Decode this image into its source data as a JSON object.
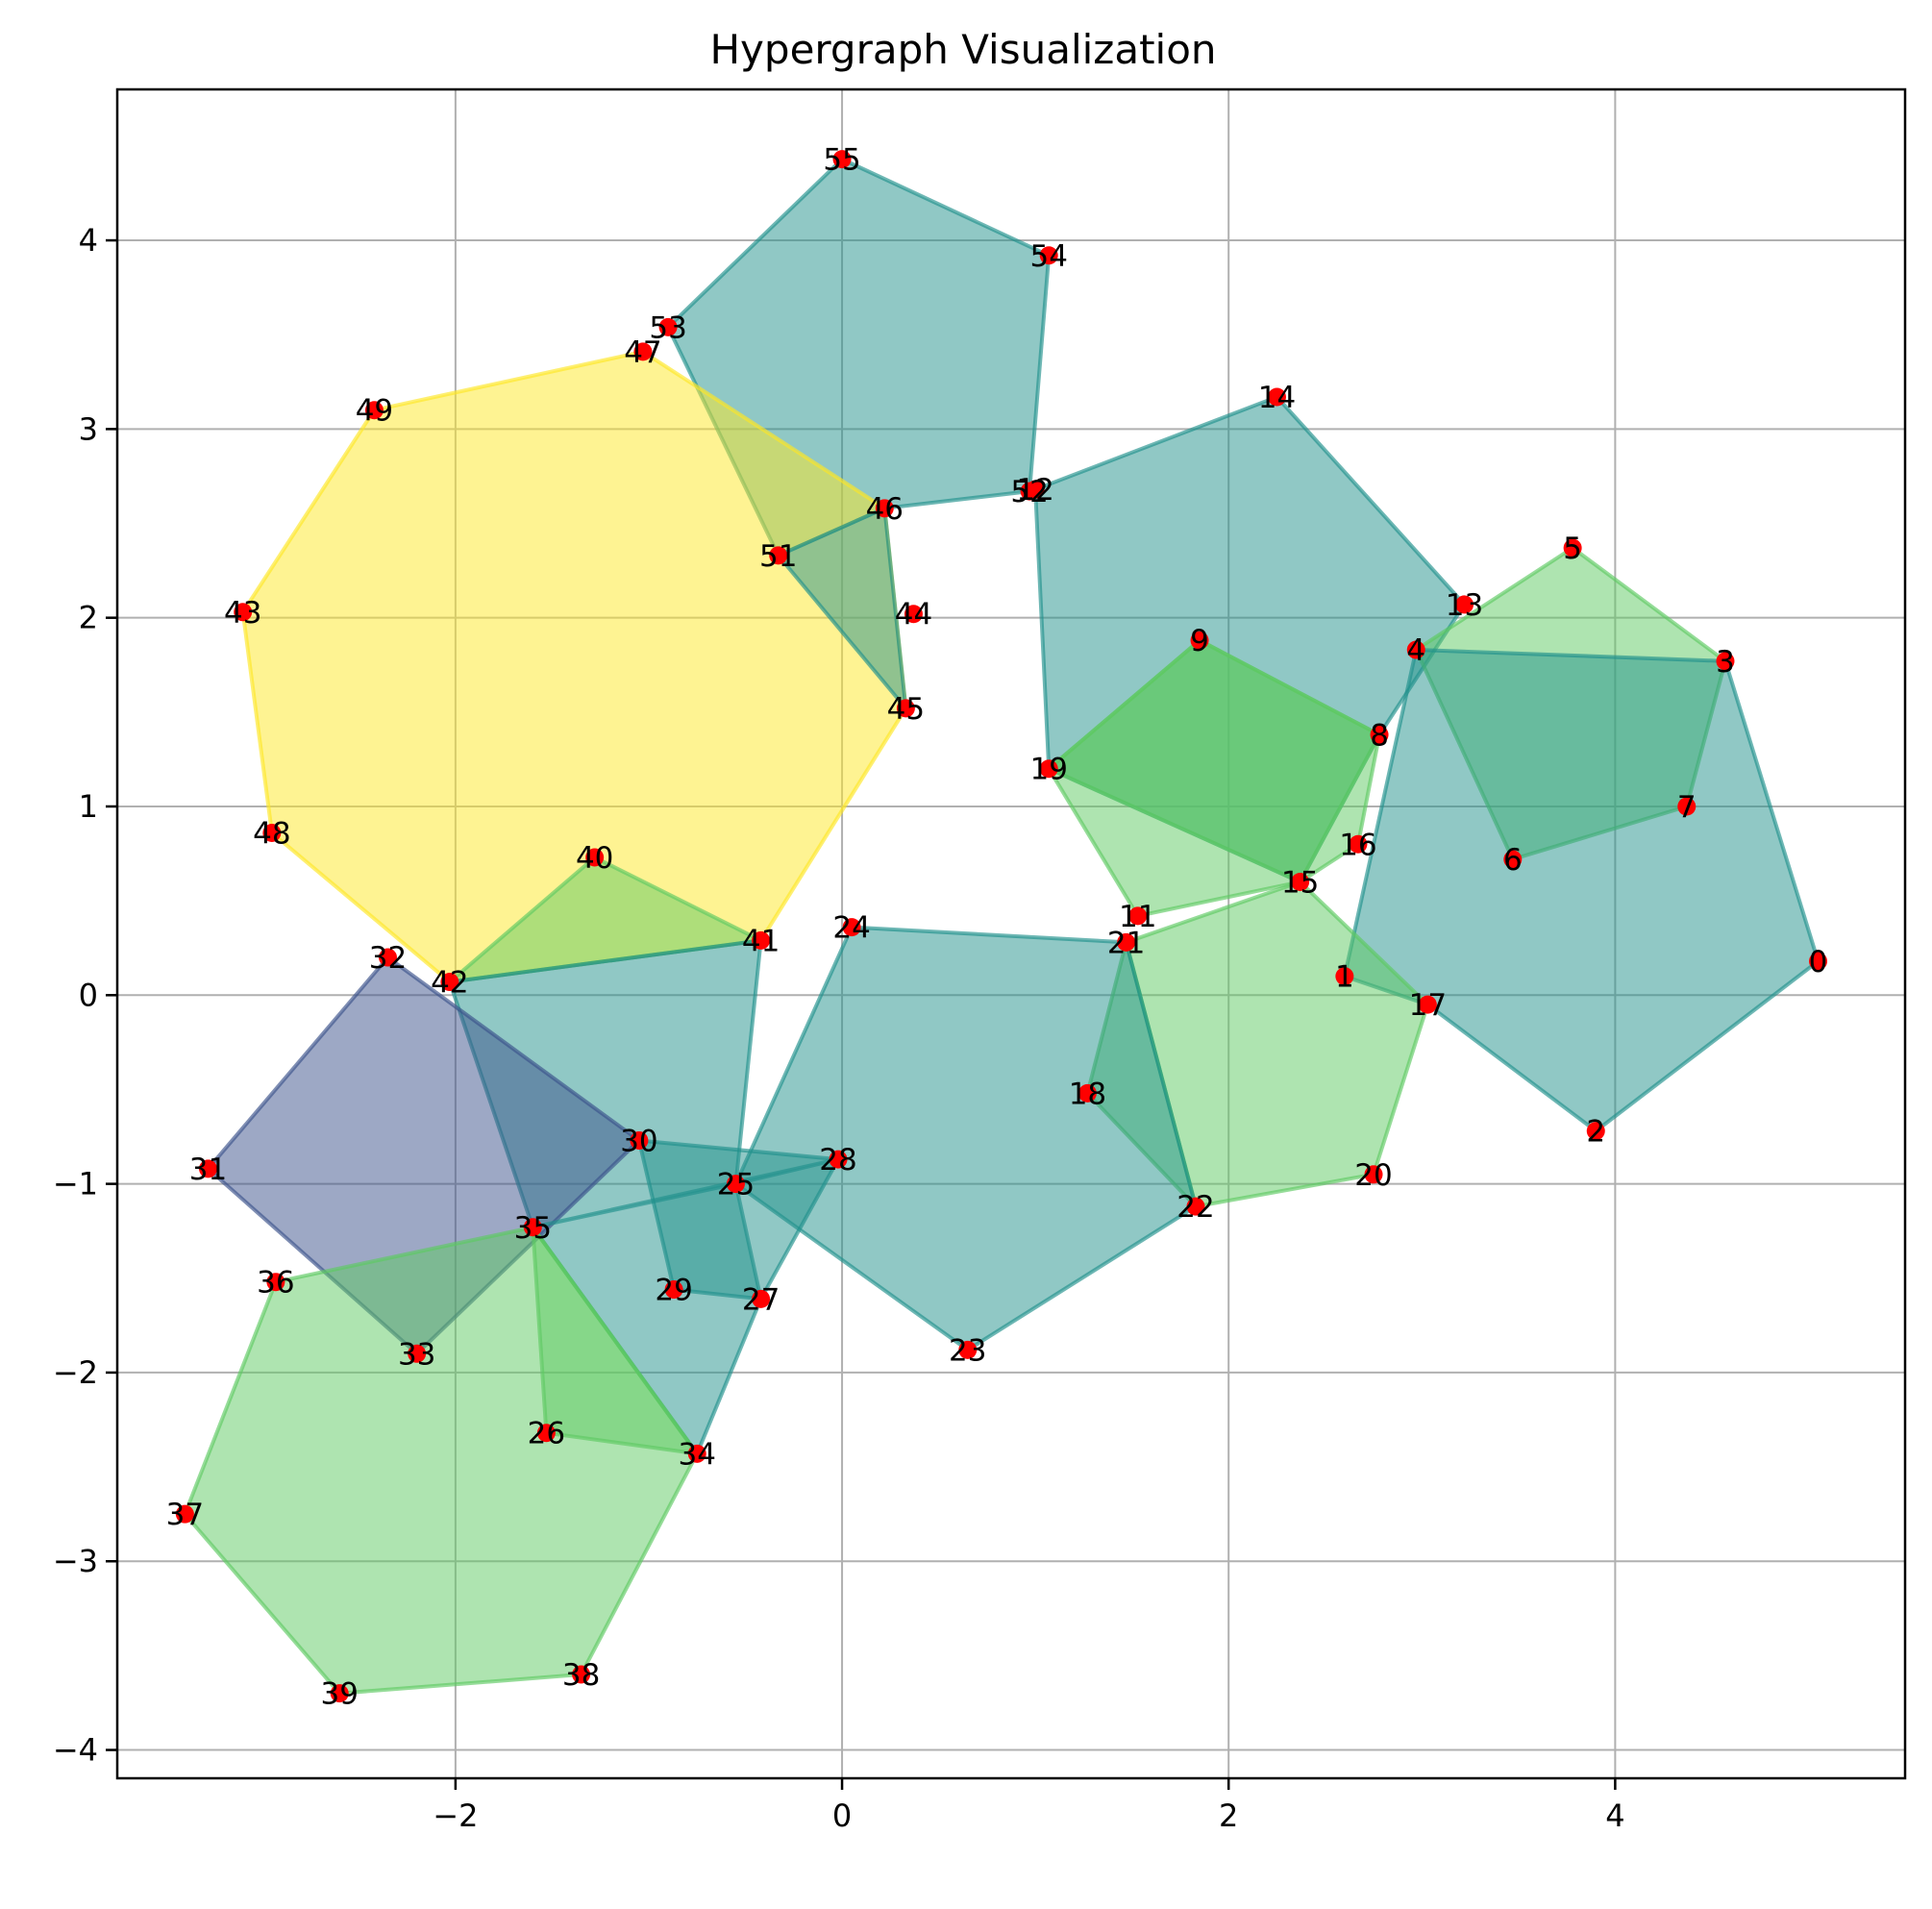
{
  "chart_data": {
    "type": "hypergraph",
    "title": "Hypergraph Visualization",
    "xlim": [
      -3.75,
      5.5
    ],
    "ylim": [
      -4.15,
      4.8
    ],
    "x_ticks": [
      -2,
      0,
      2,
      4
    ],
    "y_ticks": [
      -4,
      -3,
      -2,
      -1,
      0,
      1,
      2,
      3,
      4
    ],
    "x_tick_labels": [
      "−2",
      "0",
      "2",
      "4"
    ],
    "y_tick_labels": [
      "−4",
      "−3",
      "−2",
      "−1",
      "0",
      "1",
      "2",
      "3",
      "4"
    ],
    "grid": true,
    "node_color": "#ff0000",
    "colors": {
      "teal": "#21918c",
      "green": "#5ec962",
      "yellow": "#fde725",
      "purple": "#3b528b"
    },
    "nodes": [
      {
        "id": "0",
        "x": 5.05,
        "y": 0.18
      },
      {
        "id": "1",
        "x": 2.6,
        "y": 0.1
      },
      {
        "id": "2",
        "x": 3.9,
        "y": -0.72
      },
      {
        "id": "3",
        "x": 4.57,
        "y": 1.77
      },
      {
        "id": "4",
        "x": 2.97,
        "y": 1.83
      },
      {
        "id": "5",
        "x": 3.78,
        "y": 2.37
      },
      {
        "id": "6",
        "x": 3.47,
        "y": 0.72
      },
      {
        "id": "7",
        "x": 4.37,
        "y": 1.0
      },
      {
        "id": "8",
        "x": 2.78,
        "y": 1.38
      },
      {
        "id": "9",
        "x": 1.85,
        "y": 1.88
      },
      {
        "id": "11",
        "x": 1.53,
        "y": 0.42
      },
      {
        "id": "12",
        "x": 1.0,
        "y": 2.68
      },
      {
        "id": "13",
        "x": 3.22,
        "y": 2.07
      },
      {
        "id": "14",
        "x": 2.25,
        "y": 3.17
      },
      {
        "id": "15",
        "x": 2.37,
        "y": 0.6
      },
      {
        "id": "16",
        "x": 2.67,
        "y": 0.8
      },
      {
        "id": "17",
        "x": 3.03,
        "y": -0.05
      },
      {
        "id": "18",
        "x": 1.27,
        "y": -0.52
      },
      {
        "id": "19",
        "x": 1.07,
        "y": 1.2
      },
      {
        "id": "20",
        "x": 2.75,
        "y": -0.95
      },
      {
        "id": "21",
        "x": 1.47,
        "y": 0.28
      },
      {
        "id": "22",
        "x": 1.83,
        "y": -1.12
      },
      {
        "id": "23",
        "x": 0.65,
        "y": -1.88
      },
      {
        "id": "24",
        "x": 0.05,
        "y": 0.36
      },
      {
        "id": "25",
        "x": -0.55,
        "y": -1.0
      },
      {
        "id": "26",
        "x": -1.53,
        "y": -2.32
      },
      {
        "id": "27",
        "x": -0.42,
        "y": -1.61
      },
      {
        "id": "28",
        "x": -0.02,
        "y": -0.87
      },
      {
        "id": "29",
        "x": -0.87,
        "y": -1.56
      },
      {
        "id": "30",
        "x": -1.05,
        "y": -0.77
      },
      {
        "id": "31",
        "x": -3.28,
        "y": -0.92
      },
      {
        "id": "32",
        "x": -2.35,
        "y": 0.2
      },
      {
        "id": "33",
        "x": -2.2,
        "y": -1.9
      },
      {
        "id": "34",
        "x": -0.75,
        "y": -2.43
      },
      {
        "id": "35",
        "x": -1.6,
        "y": -1.23
      },
      {
        "id": "36",
        "x": -2.93,
        "y": -1.52
      },
      {
        "id": "37",
        "x": -3.4,
        "y": -2.75
      },
      {
        "id": "38",
        "x": -1.35,
        "y": -3.6
      },
      {
        "id": "39",
        "x": -2.6,
        "y": -3.7
      },
      {
        "id": "40",
        "x": -1.28,
        "y": 0.73
      },
      {
        "id": "41",
        "x": -0.42,
        "y": 0.29
      },
      {
        "id": "42",
        "x": -2.03,
        "y": 0.07
      },
      {
        "id": "43",
        "x": -3.1,
        "y": 2.03
      },
      {
        "id": "44",
        "x": 0.37,
        "y": 2.02
      },
      {
        "id": "45",
        "x": 0.33,
        "y": 1.52
      },
      {
        "id": "46",
        "x": 0.22,
        "y": 2.58
      },
      {
        "id": "47",
        "x": -1.03,
        "y": 3.41
      },
      {
        "id": "48",
        "x": -2.95,
        "y": 0.86
      },
      {
        "id": "49",
        "x": -2.42,
        "y": 3.1
      },
      {
        "id": "51",
        "x": -0.33,
        "y": 2.33
      },
      {
        "id": "52",
        "x": 0.97,
        "y": 2.67
      },
      {
        "id": "53",
        "x": -0.9,
        "y": 3.54
      },
      {
        "id": "54",
        "x": 1.07,
        "y": 3.92
      },
      {
        "id": "55",
        "x": 0.0,
        "y": 4.43
      }
    ],
    "hyperedges": [
      {
        "color": "teal",
        "nodes": [
          "53",
          "55",
          "54",
          "52",
          "46",
          "51"
        ]
      },
      {
        "color": "yellow",
        "nodes": [
          "47",
          "46",
          "45",
          "41",
          "42",
          "48",
          "43",
          "49"
        ]
      },
      {
        "color": "teal",
        "nodes": [
          "51",
          "46",
          "45"
        ]
      },
      {
        "color": "teal",
        "nodes": [
          "12",
          "14",
          "13",
          "8",
          "15",
          "19"
        ]
      },
      {
        "color": "green",
        "nodes": [
          "9",
          "8",
          "15",
          "19"
        ]
      },
      {
        "color": "green",
        "nodes": [
          "19",
          "9",
          "8",
          "16",
          "15",
          "11"
        ]
      },
      {
        "color": "green",
        "nodes": [
          "4",
          "5",
          "3",
          "7",
          "6"
        ]
      },
      {
        "color": "teal",
        "nodes": [
          "4",
          "3",
          "0",
          "2",
          "17",
          "1"
        ]
      },
      {
        "color": "green",
        "nodes": [
          "21",
          "15",
          "17",
          "20",
          "22"
        ]
      },
      {
        "color": "green",
        "nodes": [
          "21",
          "22",
          "18"
        ]
      },
      {
        "color": "teal",
        "nodes": [
          "24",
          "21",
          "22",
          "23",
          "25"
        ]
      },
      {
        "color": "green",
        "nodes": [
          "42",
          "40",
          "41"
        ]
      },
      {
        "color": "teal",
        "nodes": [
          "42",
          "41",
          "25",
          "27",
          "34",
          "35"
        ]
      },
      {
        "color": "purple",
        "nodes": [
          "32",
          "30",
          "33",
          "31"
        ]
      },
      {
        "color": "teal",
        "nodes": [
          "30",
          "28",
          "27",
          "29"
        ]
      },
      {
        "color": "teal",
        "nodes": [
          "35",
          "25",
          "28"
        ]
      },
      {
        "color": "green",
        "nodes": [
          "35",
          "34",
          "38",
          "39",
          "37",
          "36"
        ]
      },
      {
        "color": "green",
        "nodes": [
          "35",
          "34",
          "26"
        ]
      }
    ]
  }
}
